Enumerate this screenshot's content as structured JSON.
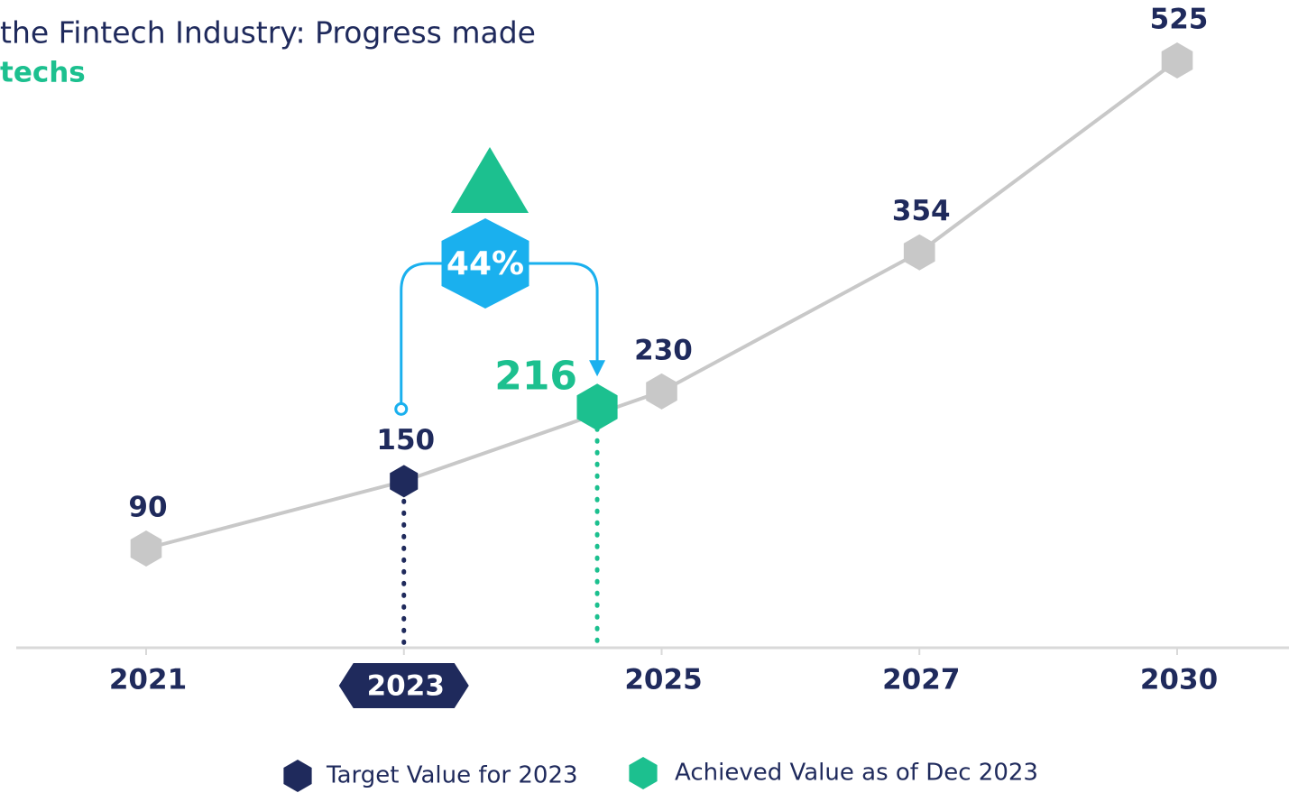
{
  "chart_data": {
    "type": "line",
    "title": "the Fintech Industry: Progress made",
    "subtitle": "techs",
    "categories": [
      "2021",
      "2023",
      "2025",
      "2027",
      "2030"
    ],
    "values": [
      90,
      150,
      230,
      354,
      525
    ],
    "color": "#c8c8c8",
    "target": {
      "name": "Target Value for 2023",
      "index": 1,
      "color": "#1f2a5c"
    },
    "achieved": {
      "name": "Achieved Value as of Dec 2023",
      "value": 216,
      "color": "#1cc08f"
    },
    "change": {
      "value": 44,
      "label": "44%",
      "color": "#1ab0ee"
    }
  }
}
